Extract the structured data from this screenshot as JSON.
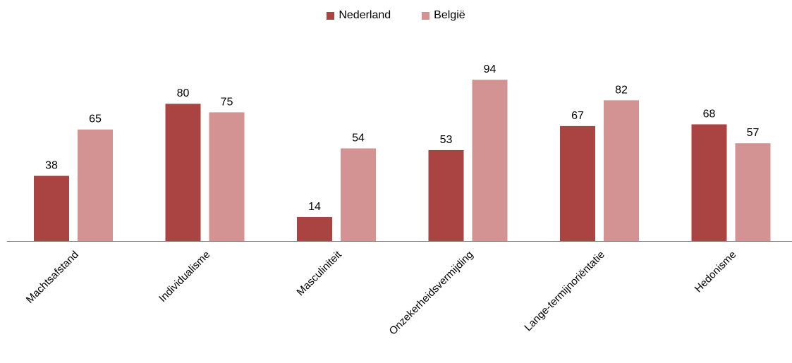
{
  "chart_data": {
    "type": "bar",
    "categories": [
      "Machtsafstand",
      "Individualisme",
      "Masculiniteit",
      "Onzekerheidsvermijding",
      "Lange-termijnoriëntatie",
      "Hedonisme"
    ],
    "series": [
      {
        "name": "Nederland",
        "color": "#a94442",
        "values": [
          38,
          80,
          14,
          53,
          67,
          68
        ]
      },
      {
        "name": "België",
        "color": "#d39392",
        "values": [
          65,
          75,
          54,
          94,
          82,
          57
        ]
      }
    ],
    "title": "",
    "xlabel": "",
    "ylabel": "",
    "ylim": [
      0,
      100
    ],
    "grid": false,
    "legend": "top-center",
    "data_labels": true
  }
}
